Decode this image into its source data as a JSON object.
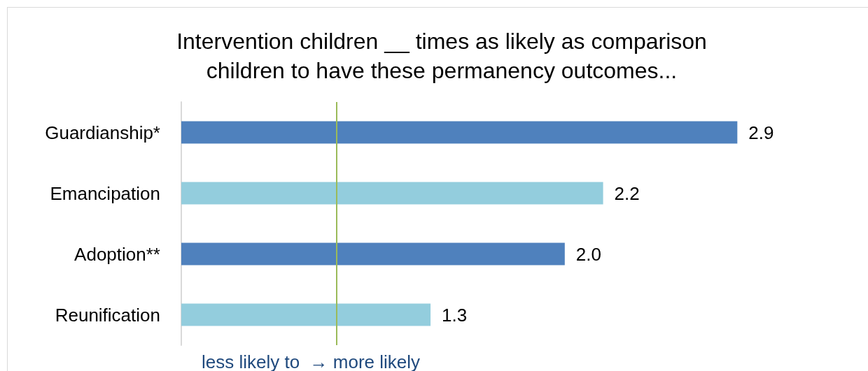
{
  "chart_data": {
    "type": "bar",
    "orientation": "horizontal",
    "title": "Intervention children __ times as likely as comparison\nchildren to have these permanency outcomes...",
    "categories": [
      "Guardianship*",
      "Emancipation",
      "Adoption**",
      "Reunification"
    ],
    "values": [
      2.9,
      2.2,
      2.0,
      1.3
    ],
    "colors": [
      "#4f81bd",
      "#93cddd",
      "#4f81bd",
      "#93cddd"
    ],
    "value_labels": [
      "2.9",
      "2.2",
      "2.0",
      "1.3"
    ],
    "ref_lines": [
      {
        "axis": "x",
        "value": 0.81,
        "color": "#9bbb59"
      }
    ],
    "annotations": [
      "less likely to  → more likely"
    ]
  }
}
